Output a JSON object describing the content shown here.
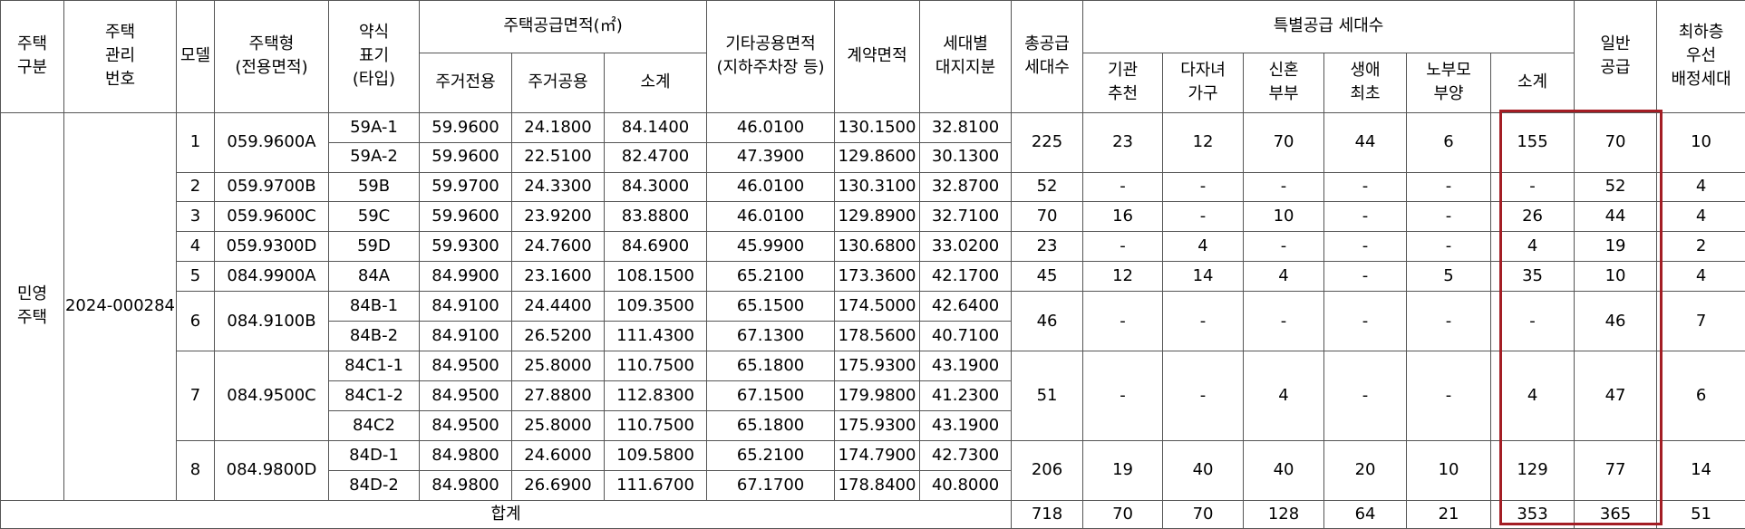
{
  "header": {
    "housing_category": [
      "주택",
      "구분"
    ],
    "management_no": [
      "주택",
      "관리",
      "번호"
    ],
    "model": "모델",
    "housing_type": [
      "주택형",
      "(전용면적)"
    ],
    "abbrev": [
      "약식",
      "표기",
      "(타입)"
    ],
    "supply_area": "주택공급면적(㎡)",
    "exclusive": "주거전용",
    "shared": "주거공용",
    "supply_subtotal": "소계",
    "other_shared": [
      "기타공용면적",
      "(지하주차장 등)"
    ],
    "contract_area": "계약면적",
    "land_share": [
      "세대별",
      "대지지분"
    ],
    "total_supply": [
      "총공급",
      "세대수"
    ],
    "special_supply": "특별공급 세대수",
    "institution": [
      "기관",
      "추천"
    ],
    "multi_child": [
      "다자녀",
      "가구"
    ],
    "newlywed": [
      "신혼",
      "부부"
    ],
    "first_time": [
      "생애",
      "최초"
    ],
    "elderly_parent": [
      "노부모",
      "부양"
    ],
    "special_subtotal": "소계",
    "general_supply": [
      "일반",
      "공급"
    ],
    "lowest_floor_priority": [
      "최하층",
      "우선",
      "배정세대"
    ]
  },
  "category": [
    "민영",
    "주택"
  ],
  "management_number": "2024-000284",
  "models": [
    {
      "model": "1",
      "type": "059.9600A",
      "total": "225",
      "institution": "23",
      "multi_child": "12",
      "newlywed": "70",
      "first_time": "44",
      "elderly": "6",
      "subtotal": "155",
      "general": "70",
      "lowest": "10",
      "rows": [
        {
          "abbr": "59A-1",
          "exclusive": "59.9600",
          "shared": "24.1800",
          "subtotal": "84.1400",
          "other": "46.0100",
          "contract": "130.1500",
          "land": "32.8100"
        },
        {
          "abbr": "59A-2",
          "exclusive": "59.9600",
          "shared": "22.5100",
          "subtotal": "82.4700",
          "other": "47.3900",
          "contract": "129.8600",
          "land": "30.1300"
        }
      ]
    },
    {
      "model": "2",
      "type": "059.9700B",
      "total": "52",
      "institution": "-",
      "multi_child": "-",
      "newlywed": "-",
      "first_time": "-",
      "elderly": "-",
      "subtotal": "-",
      "general": "52",
      "lowest": "4",
      "rows": [
        {
          "abbr": "59B",
          "exclusive": "59.9700",
          "shared": "24.3300",
          "subtotal": "84.3000",
          "other": "46.0100",
          "contract": "130.3100",
          "land": "32.8700"
        }
      ]
    },
    {
      "model": "3",
      "type": "059.9600C",
      "total": "70",
      "institution": "16",
      "multi_child": "-",
      "newlywed": "10",
      "first_time": "-",
      "elderly": "-",
      "subtotal": "26",
      "general": "44",
      "lowest": "4",
      "rows": [
        {
          "abbr": "59C",
          "exclusive": "59.9600",
          "shared": "23.9200",
          "subtotal": "83.8800",
          "other": "46.0100",
          "contract": "129.8900",
          "land": "32.7100"
        }
      ]
    },
    {
      "model": "4",
      "type": "059.9300D",
      "total": "23",
      "institution": "-",
      "multi_child": "4",
      "newlywed": "-",
      "first_time": "-",
      "elderly": "-",
      "subtotal": "4",
      "general": "19",
      "lowest": "2",
      "rows": [
        {
          "abbr": "59D",
          "exclusive": "59.9300",
          "shared": "24.7600",
          "subtotal": "84.6900",
          "other": "45.9900",
          "contract": "130.6800",
          "land": "33.0200"
        }
      ]
    },
    {
      "model": "5",
      "type": "084.9900A",
      "total": "45",
      "institution": "12",
      "multi_child": "14",
      "newlywed": "4",
      "first_time": "-",
      "elderly": "5",
      "subtotal": "35",
      "general": "10",
      "lowest": "4",
      "rows": [
        {
          "abbr": "84A",
          "exclusive": "84.9900",
          "shared": "23.1600",
          "subtotal": "108.1500",
          "other": "65.2100",
          "contract": "173.3600",
          "land": "42.1700"
        }
      ]
    },
    {
      "model": "6",
      "type": "084.9100B",
      "total": "46",
      "institution": "-",
      "multi_child": "-",
      "newlywed": "-",
      "first_time": "-",
      "elderly": "-",
      "subtotal": "-",
      "general": "46",
      "lowest": "7",
      "rows": [
        {
          "abbr": "84B-1",
          "exclusive": "84.9100",
          "shared": "24.4400",
          "subtotal": "109.3500",
          "other": "65.1500",
          "contract": "174.5000",
          "land": "42.6400"
        },
        {
          "abbr": "84B-2",
          "exclusive": "84.9100",
          "shared": "26.5200",
          "subtotal": "111.4300",
          "other": "67.1300",
          "contract": "178.5600",
          "land": "40.7100"
        }
      ]
    },
    {
      "model": "7",
      "type": "084.9500C",
      "total": "51",
      "institution": "-",
      "multi_child": "-",
      "newlywed": "4",
      "first_time": "-",
      "elderly": "-",
      "subtotal": "4",
      "general": "47",
      "lowest": "6",
      "rows": [
        {
          "abbr": "84C1-1",
          "exclusive": "84.9500",
          "shared": "25.8000",
          "subtotal": "110.7500",
          "other": "65.1800",
          "contract": "175.9300",
          "land": "43.1900"
        },
        {
          "abbr": "84C1-2",
          "exclusive": "84.9500",
          "shared": "27.8800",
          "subtotal": "112.8300",
          "other": "67.1500",
          "contract": "179.9800",
          "land": "41.2300"
        },
        {
          "abbr": "84C2",
          "exclusive": "84.9500",
          "shared": "25.8000",
          "subtotal": "110.7500",
          "other": "65.1800",
          "contract": "175.9300",
          "land": "43.1900"
        }
      ]
    },
    {
      "model": "8",
      "type": "084.9800D",
      "total": "206",
      "institution": "19",
      "multi_child": "40",
      "newlywed": "40",
      "first_time": "20",
      "elderly": "10",
      "subtotal": "129",
      "general": "77",
      "lowest": "14",
      "rows": [
        {
          "abbr": "84D-1",
          "exclusive": "84.9800",
          "shared": "24.6000",
          "subtotal": "109.5800",
          "other": "65.2100",
          "contract": "174.7900",
          "land": "42.7300"
        },
        {
          "abbr": "84D-2",
          "exclusive": "84.9800",
          "shared": "26.6900",
          "subtotal": "111.6700",
          "other": "67.1700",
          "contract": "178.8400",
          "land": "40.8000"
        }
      ]
    }
  ],
  "totals": {
    "label": "합계",
    "total": "718",
    "institution": "70",
    "multi_child": "70",
    "newlywed": "128",
    "first_time": "64",
    "elderly": "21",
    "subtotal": "353",
    "general": "365",
    "lowest": "51"
  },
  "colors": {
    "highlight_border": "#a31d24",
    "grid": "#555555"
  }
}
